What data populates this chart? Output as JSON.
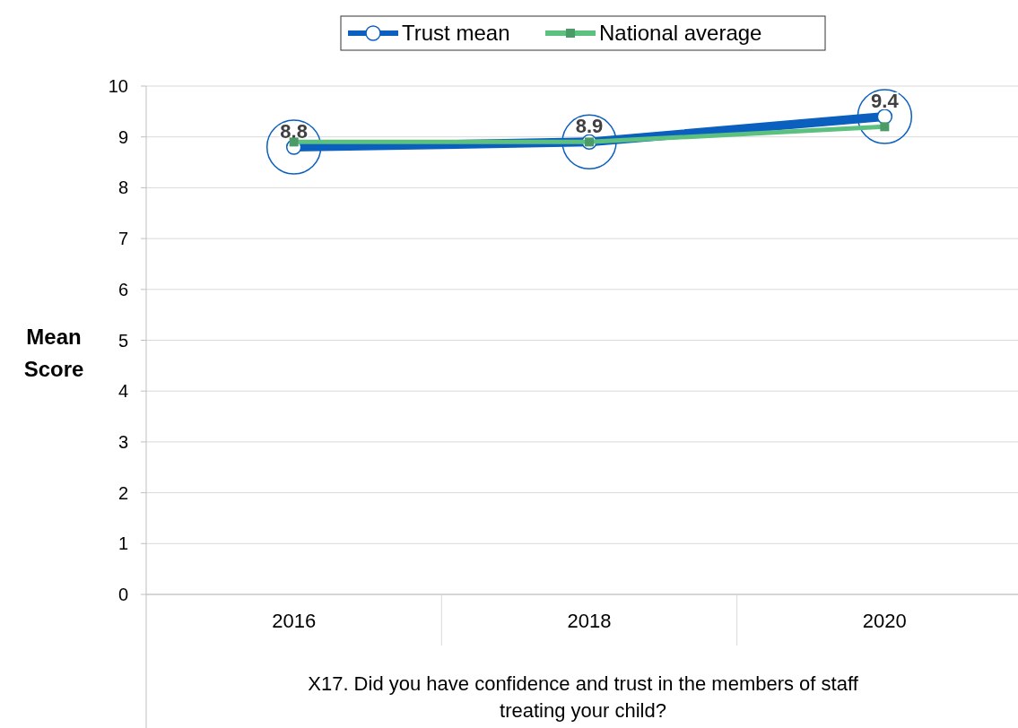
{
  "chart_data": {
    "type": "line",
    "xlabel": "X17. Did you have confidence and trust in the members of staff treating your child?",
    "ylabel": "Mean Score",
    "categories": [
      "2016",
      "2018",
      "2020"
    ],
    "series": [
      {
        "name": "Trust mean",
        "color": "#0a5fbf",
        "values": [
          8.8,
          8.9,
          9.4
        ],
        "marker": "circle",
        "value_labels": [
          "8.8",
          "8.9",
          "9.4"
        ]
      },
      {
        "name": "National average",
        "color": "#5cc07f",
        "values": [
          8.9,
          8.9,
          9.2
        ],
        "marker": "square"
      }
    ],
    "ylim": [
      0,
      10
    ],
    "yticks": [
      0,
      1,
      2,
      3,
      4,
      5,
      6,
      7,
      8,
      9,
      10
    ],
    "grid": "y",
    "legend": "top",
    "line_style": "solid"
  }
}
